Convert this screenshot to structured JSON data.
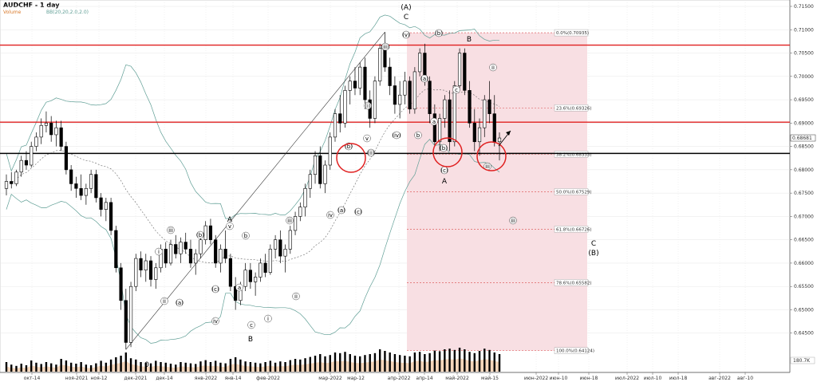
{
  "header": {
    "title": "AUDCHF - 1 day",
    "volume_label": "Volume",
    "bb_label": "BB(20,20,2.0,2.0)"
  },
  "colors": {
    "up": "#000000",
    "down": "#000000",
    "bull_mark": "#2a9d3a",
    "bear_mark": "#d62828",
    "resistance": "#e02020",
    "support": "#000000",
    "fib_zone": "#f8dfe3",
    "fib_line": "#d94a4a",
    "bollinger": "#5f9e95",
    "bollinger_mid": "#666666",
    "volume": "#000000",
    "volume_area": "#f2c6a0"
  },
  "chart_data": {
    "type": "candlestick",
    "title": "AUDCHF - 1 day",
    "ylim": [
      0.64,
      0.715
    ],
    "y_ticks": [
      "0.71500",
      "0.71000",
      "0.70500",
      "0.70000",
      "0.69500",
      "0.69000",
      "0.68500",
      "0.68000",
      "0.67500",
      "0.67000",
      "0.66500",
      "0.66000",
      "0.65500",
      "0.65000",
      "0.64500"
    ],
    "x_ticks": [
      "окт-14",
      "ноя-2021",
      "ноя-12",
      "дек-2021",
      "дек-14",
      "янв-2022",
      "янв-14",
      "фев-2022",
      "мар-2022",
      "мар-12",
      "апр-2022",
      "апр-14",
      "май-2022",
      "май-15",
      "июн-2022",
      "июн-10",
      "июн-18",
      "июл-2022",
      "июл-10",
      "июл-18",
      "авг-2022",
      "авг-10"
    ],
    "current_price": "0.68681",
    "volume_label": "180.7K",
    "resistance_levels": [
      0.7067,
      0.6902
    ],
    "support_level": 0.6835,
    "fib_levels": [
      {
        "label": "0.0%(0.70935)",
        "value": 0.70935
      },
      {
        "label": "23.6%(0.69326)",
        "value": 0.69326
      },
      {
        "label": "38.2%(0.68333)",
        "value": 0.68333
      },
      {
        "label": "50.0%(0.67529)",
        "value": 0.67529
      },
      {
        "label": "61.8%(0.66726)",
        "value": 0.66726
      },
      {
        "label": "78.6%(0.65582)",
        "value": 0.65582
      },
      {
        "label": "100.0%(0.64124)",
        "value": 0.64124
      }
    ],
    "candles": [
      {
        "o": 0.676,
        "h": 0.679,
        "l": 0.6745,
        "c": 0.6775
      },
      {
        "o": 0.6775,
        "h": 0.6795,
        "l": 0.676,
        "c": 0.677
      },
      {
        "o": 0.677,
        "h": 0.68,
        "l": 0.6765,
        "c": 0.6795
      },
      {
        "o": 0.6795,
        "h": 0.683,
        "l": 0.6785,
        "c": 0.682
      },
      {
        "o": 0.682,
        "h": 0.684,
        "l": 0.68,
        "c": 0.681
      },
      {
        "o": 0.681,
        "h": 0.686,
        "l": 0.6805,
        "c": 0.685
      },
      {
        "o": 0.685,
        "h": 0.688,
        "l": 0.684,
        "c": 0.687
      },
      {
        "o": 0.687,
        "h": 0.691,
        "l": 0.6855,
        "c": 0.6895
      },
      {
        "o": 0.6895,
        "h": 0.6925,
        "l": 0.688,
        "c": 0.69
      },
      {
        "o": 0.69,
        "h": 0.6915,
        "l": 0.686,
        "c": 0.6875
      },
      {
        "o": 0.6875,
        "h": 0.6905,
        "l": 0.685,
        "c": 0.689
      },
      {
        "o": 0.689,
        "h": 0.6905,
        "l": 0.684,
        "c": 0.685
      },
      {
        "o": 0.685,
        "h": 0.686,
        "l": 0.679,
        "c": 0.68
      },
      {
        "o": 0.68,
        "h": 0.681,
        "l": 0.6755,
        "c": 0.677
      },
      {
        "o": 0.677,
        "h": 0.6785,
        "l": 0.674,
        "c": 0.676
      },
      {
        "o": 0.676,
        "h": 0.679,
        "l": 0.6735,
        "c": 0.6745
      },
      {
        "o": 0.6745,
        "h": 0.677,
        "l": 0.6725,
        "c": 0.676
      },
      {
        "o": 0.676,
        "h": 0.68,
        "l": 0.675,
        "c": 0.679
      },
      {
        "o": 0.679,
        "h": 0.68,
        "l": 0.673,
        "c": 0.674
      },
      {
        "o": 0.674,
        "h": 0.675,
        "l": 0.67,
        "c": 0.6715
      },
      {
        "o": 0.6715,
        "h": 0.674,
        "l": 0.669,
        "c": 0.673
      },
      {
        "o": 0.673,
        "h": 0.674,
        "l": 0.666,
        "c": 0.667
      },
      {
        "o": 0.667,
        "h": 0.668,
        "l": 0.658,
        "c": 0.659
      },
      {
        "o": 0.659,
        "h": 0.66,
        "l": 0.65,
        "c": 0.652
      },
      {
        "o": 0.652,
        "h": 0.6545,
        "l": 0.6415,
        "c": 0.643
      },
      {
        "o": 0.643,
        "h": 0.656,
        "l": 0.642,
        "c": 0.655
      },
      {
        "o": 0.655,
        "h": 0.662,
        "l": 0.654,
        "c": 0.661
      },
      {
        "o": 0.661,
        "h": 0.6625,
        "l": 0.657,
        "c": 0.6585
      },
      {
        "o": 0.6585,
        "h": 0.662,
        "l": 0.656,
        "c": 0.6605
      },
      {
        "o": 0.6605,
        "h": 0.6615,
        "l": 0.655,
        "c": 0.6565
      },
      {
        "o": 0.6565,
        "h": 0.66,
        "l": 0.6545,
        "c": 0.659
      },
      {
        "o": 0.659,
        "h": 0.664,
        "l": 0.658,
        "c": 0.663
      },
      {
        "o": 0.663,
        "h": 0.6645,
        "l": 0.659,
        "c": 0.66
      },
      {
        "o": 0.66,
        "h": 0.665,
        "l": 0.6595,
        "c": 0.664
      },
      {
        "o": 0.664,
        "h": 0.666,
        "l": 0.661,
        "c": 0.662
      },
      {
        "o": 0.662,
        "h": 0.6655,
        "l": 0.66,
        "c": 0.6645
      },
      {
        "o": 0.6645,
        "h": 0.6665,
        "l": 0.662,
        "c": 0.663
      },
      {
        "o": 0.663,
        "h": 0.665,
        "l": 0.659,
        "c": 0.66
      },
      {
        "o": 0.66,
        "h": 0.663,
        "l": 0.6575,
        "c": 0.662
      },
      {
        "o": 0.662,
        "h": 0.666,
        "l": 0.661,
        "c": 0.665
      },
      {
        "o": 0.665,
        "h": 0.669,
        "l": 0.664,
        "c": 0.668
      },
      {
        "o": 0.668,
        "h": 0.6695,
        "l": 0.664,
        "c": 0.665
      },
      {
        "o": 0.665,
        "h": 0.666,
        "l": 0.659,
        "c": 0.66
      },
      {
        "o": 0.66,
        "h": 0.664,
        "l": 0.658,
        "c": 0.663
      },
      {
        "o": 0.663,
        "h": 0.667,
        "l": 0.66,
        "c": 0.661
      },
      {
        "o": 0.661,
        "h": 0.662,
        "l": 0.654,
        "c": 0.655
      },
      {
        "o": 0.655,
        "h": 0.657,
        "l": 0.65,
        "c": 0.652
      },
      {
        "o": 0.652,
        "h": 0.656,
        "l": 0.651,
        "c": 0.655
      },
      {
        "o": 0.655,
        "h": 0.66,
        "l": 0.654,
        "c": 0.6585
      },
      {
        "o": 0.6585,
        "h": 0.66,
        "l": 0.6545,
        "c": 0.656
      },
      {
        "o": 0.656,
        "h": 0.658,
        "l": 0.653,
        "c": 0.657
      },
      {
        "o": 0.657,
        "h": 0.661,
        "l": 0.656,
        "c": 0.66
      },
      {
        "o": 0.66,
        "h": 0.662,
        "l": 0.657,
        "c": 0.658
      },
      {
        "o": 0.658,
        "h": 0.664,
        "l": 0.6575,
        "c": 0.663
      },
      {
        "o": 0.663,
        "h": 0.666,
        "l": 0.661,
        "c": 0.665
      },
      {
        "o": 0.665,
        "h": 0.667,
        "l": 0.66,
        "c": 0.6615
      },
      {
        "o": 0.6615,
        "h": 0.664,
        "l": 0.658,
        "c": 0.663
      },
      {
        "o": 0.663,
        "h": 0.668,
        "l": 0.662,
        "c": 0.667
      },
      {
        "o": 0.667,
        "h": 0.671,
        "l": 0.666,
        "c": 0.67
      },
      {
        "o": 0.67,
        "h": 0.673,
        "l": 0.669,
        "c": 0.672
      },
      {
        "o": 0.672,
        "h": 0.677,
        "l": 0.67,
        "c": 0.676
      },
      {
        "o": 0.676,
        "h": 0.68,
        "l": 0.674,
        "c": 0.679
      },
      {
        "o": 0.679,
        "h": 0.684,
        "l": 0.677,
        "c": 0.683
      },
      {
        "o": 0.683,
        "h": 0.685,
        "l": 0.676,
        "c": 0.677
      },
      {
        "o": 0.677,
        "h": 0.682,
        "l": 0.675,
        "c": 0.681
      },
      {
        "o": 0.681,
        "h": 0.688,
        "l": 0.68,
        "c": 0.687
      },
      {
        "o": 0.687,
        "h": 0.693,
        "l": 0.686,
        "c": 0.692
      },
      {
        "o": 0.692,
        "h": 0.696,
        "l": 0.688,
        "c": 0.69
      },
      {
        "o": 0.69,
        "h": 0.698,
        "l": 0.689,
        "c": 0.697
      },
      {
        "o": 0.697,
        "h": 0.7,
        "l": 0.694,
        "c": 0.699
      },
      {
        "o": 0.699,
        "h": 0.702,
        "l": 0.696,
        "c": 0.6975
      },
      {
        "o": 0.6975,
        "h": 0.703,
        "l": 0.696,
        "c": 0.702
      },
      {
        "o": 0.702,
        "h": 0.704,
        "l": 0.693,
        "c": 0.695
      },
      {
        "o": 0.695,
        "h": 0.697,
        "l": 0.689,
        "c": 0.691
      },
      {
        "o": 0.691,
        "h": 0.7,
        "l": 0.69,
        "c": 0.699
      },
      {
        "o": 0.699,
        "h": 0.707,
        "l": 0.698,
        "c": 0.706
      },
      {
        "o": 0.706,
        "h": 0.7095,
        "l": 0.701,
        "c": 0.702
      },
      {
        "o": 0.702,
        "h": 0.704,
        "l": 0.696,
        "c": 0.698
      },
      {
        "o": 0.698,
        "h": 0.7,
        "l": 0.692,
        "c": 0.694
      },
      {
        "o": 0.694,
        "h": 0.699,
        "l": 0.691,
        "c": 0.696
      },
      {
        "o": 0.696,
        "h": 0.701,
        "l": 0.694,
        "c": 0.699
      },
      {
        "o": 0.699,
        "h": 0.7,
        "l": 0.692,
        "c": 0.693
      },
      {
        "o": 0.693,
        "h": 0.702,
        "l": 0.692,
        "c": 0.701
      },
      {
        "o": 0.701,
        "h": 0.706,
        "l": 0.7,
        "c": 0.705
      },
      {
        "o": 0.705,
        "h": 0.707,
        "l": 0.698,
        "c": 0.699
      },
      {
        "o": 0.699,
        "h": 0.7,
        "l": 0.69,
        "c": 0.692
      },
      {
        "o": 0.692,
        "h": 0.694,
        "l": 0.685,
        "c": 0.686
      },
      {
        "o": 0.686,
        "h": 0.692,
        "l": 0.684,
        "c": 0.691
      },
      {
        "o": 0.691,
        "h": 0.696,
        "l": 0.689,
        "c": 0.695
      },
      {
        "o": 0.695,
        "h": 0.697,
        "l": 0.684,
        "c": 0.686
      },
      {
        "o": 0.686,
        "h": 0.699,
        "l": 0.685,
        "c": 0.698
      },
      {
        "o": 0.698,
        "h": 0.706,
        "l": 0.697,
        "c": 0.705
      },
      {
        "o": 0.705,
        "h": 0.706,
        "l": 0.696,
        "c": 0.697
      },
      {
        "o": 0.697,
        "h": 0.699,
        "l": 0.689,
        "c": 0.69
      },
      {
        "o": 0.69,
        "h": 0.693,
        "l": 0.684,
        "c": 0.686
      },
      {
        "o": 0.686,
        "h": 0.691,
        "l": 0.683,
        "c": 0.689
      },
      {
        "o": 0.689,
        "h": 0.696,
        "l": 0.687,
        "c": 0.695
      },
      {
        "o": 0.695,
        "h": 0.699,
        "l": 0.69,
        "c": 0.692
      },
      {
        "o": 0.692,
        "h": 0.696,
        "l": 0.685,
        "c": 0.686
      },
      {
        "o": 0.686,
        "h": 0.688,
        "l": 0.682,
        "c": 0.6868
      }
    ],
    "volumes": [
      30,
      22,
      18,
      25,
      20,
      35,
      28,
      24,
      30,
      26,
      22,
      40,
      35,
      28,
      25,
      30,
      22,
      20,
      26,
      34,
      28,
      38,
      45,
      50,
      60,
      42,
      38,
      30,
      28,
      26,
      34,
      30,
      28,
      25,
      22,
      30,
      28,
      26,
      24,
      32,
      36,
      30,
      34,
      28,
      26,
      40,
      45,
      38,
      32,
      30,
      28,
      26,
      30,
      34,
      28,
      32,
      30,
      36,
      40,
      38,
      42,
      46,
      50,
      55,
      48,
      52,
      60,
      58,
      62,
      55,
      50,
      48,
      52,
      55,
      58,
      70,
      65,
      60,
      55,
      52,
      50,
      48,
      60,
      62,
      55,
      58,
      66,
      64,
      70,
      72,
      68,
      75,
      70,
      62,
      58,
      65,
      72,
      68,
      60,
      55
    ]
  },
  "annotations": {
    "wave_big": {
      "A1": "A",
      "B1": "B",
      "A_top": "(A)",
      "C_top": "C",
      "A2": "A",
      "B2": "B",
      "C_right": "C",
      "B_right": "(B)",
      "zero": "0"
    },
    "wave_small": [
      "i",
      "ii",
      "iii",
      "iv",
      "v",
      "(a)",
      "(b)",
      "(c)",
      "a",
      "b",
      "c",
      "i",
      "ii",
      "iii",
      "iv",
      "v",
      "(i)",
      "(ii)",
      "(iii)",
      "(iv)",
      "(v)",
      "(a)",
      "(b)",
      "(c)",
      "(a)",
      "(b)",
      "(c)",
      "a",
      "b",
      "c",
      "(b)",
      "iii",
      "ii",
      "iii"
    ]
  }
}
